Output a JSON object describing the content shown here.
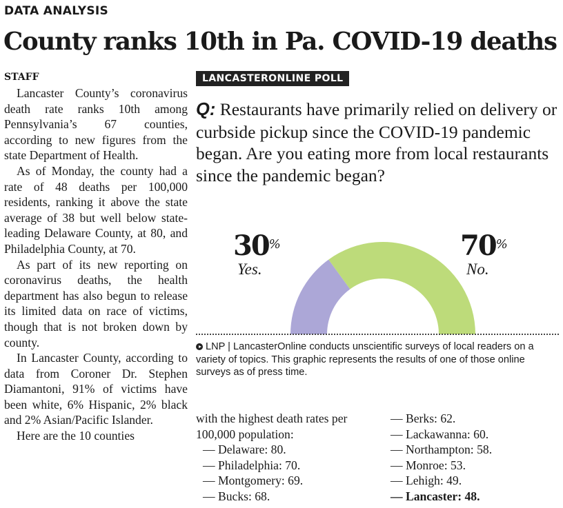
{
  "kicker": "DATA ANALYSIS",
  "headline": "County ranks 10th in Pa. COVID-19 deaths",
  "byline": "STAFF",
  "article": {
    "paragraphs": [
      "Lancaster County’s coro­navirus death rate ranks 10th among Pennsylvania’s 67 counties, according to new figures from the state De­partment of Health.",
      "As of Monday, the county had a rate of 48 deaths per 100,000 residents, ranking it above the state average of 38 but well below state-leading Delaware County, at 80, and Philadelphia County, at 70.",
      "As part of its new report­ing on coronavirus deaths, the health department has also begun to release its lim­ited data on race of victims, though that is not broken down by county.",
      "In Lancaster County, ac­cording to data from Coroner Dr. Stephen Diamantoni, 91% of victims have been white, 6% Hispanic, 2% black and 2% Asian/Pacific Islander.",
      "Here are the 10 counties"
    ],
    "continuation": "with the highest death rates per 100,000 population:",
    "list_col1": [
      "— Delaware: 80.",
      "— Philadelphia: 70.",
      "— Montgomery: 69.",
      "— Bucks: 68."
    ],
    "list_col2": [
      "— Berks: 62.",
      "— Lackawanna: 60.",
      "— Northampton: 58.",
      "— Monroe: 53.",
      "— Lehigh: 49."
    ],
    "list_highlight": "— Lancaster: 48."
  },
  "poll": {
    "badge": "LANCASTERONLINE POLL",
    "q_label": "Q:",
    "question": " Restaurants have primarily relied on delivery or curbside pickup since the COVID-19 pandemic began. Are you eating more from local restaurants since the pandemic began?",
    "yes": {
      "value": "30",
      "unit": "%",
      "label": "Yes.",
      "percent": 30,
      "color": "#aca7d7"
    },
    "no": {
      "value": "70",
      "unit": "%",
      "label": "No.",
      "percent": 70,
      "color": "#bddb7a"
    },
    "note_icon": "play-circle-icon",
    "note": "LNP | LancasterOnline conducts unscientific surveys of local readers on a variety of topics. This graphic represents the results of one of those online surveys as of press time."
  }
}
